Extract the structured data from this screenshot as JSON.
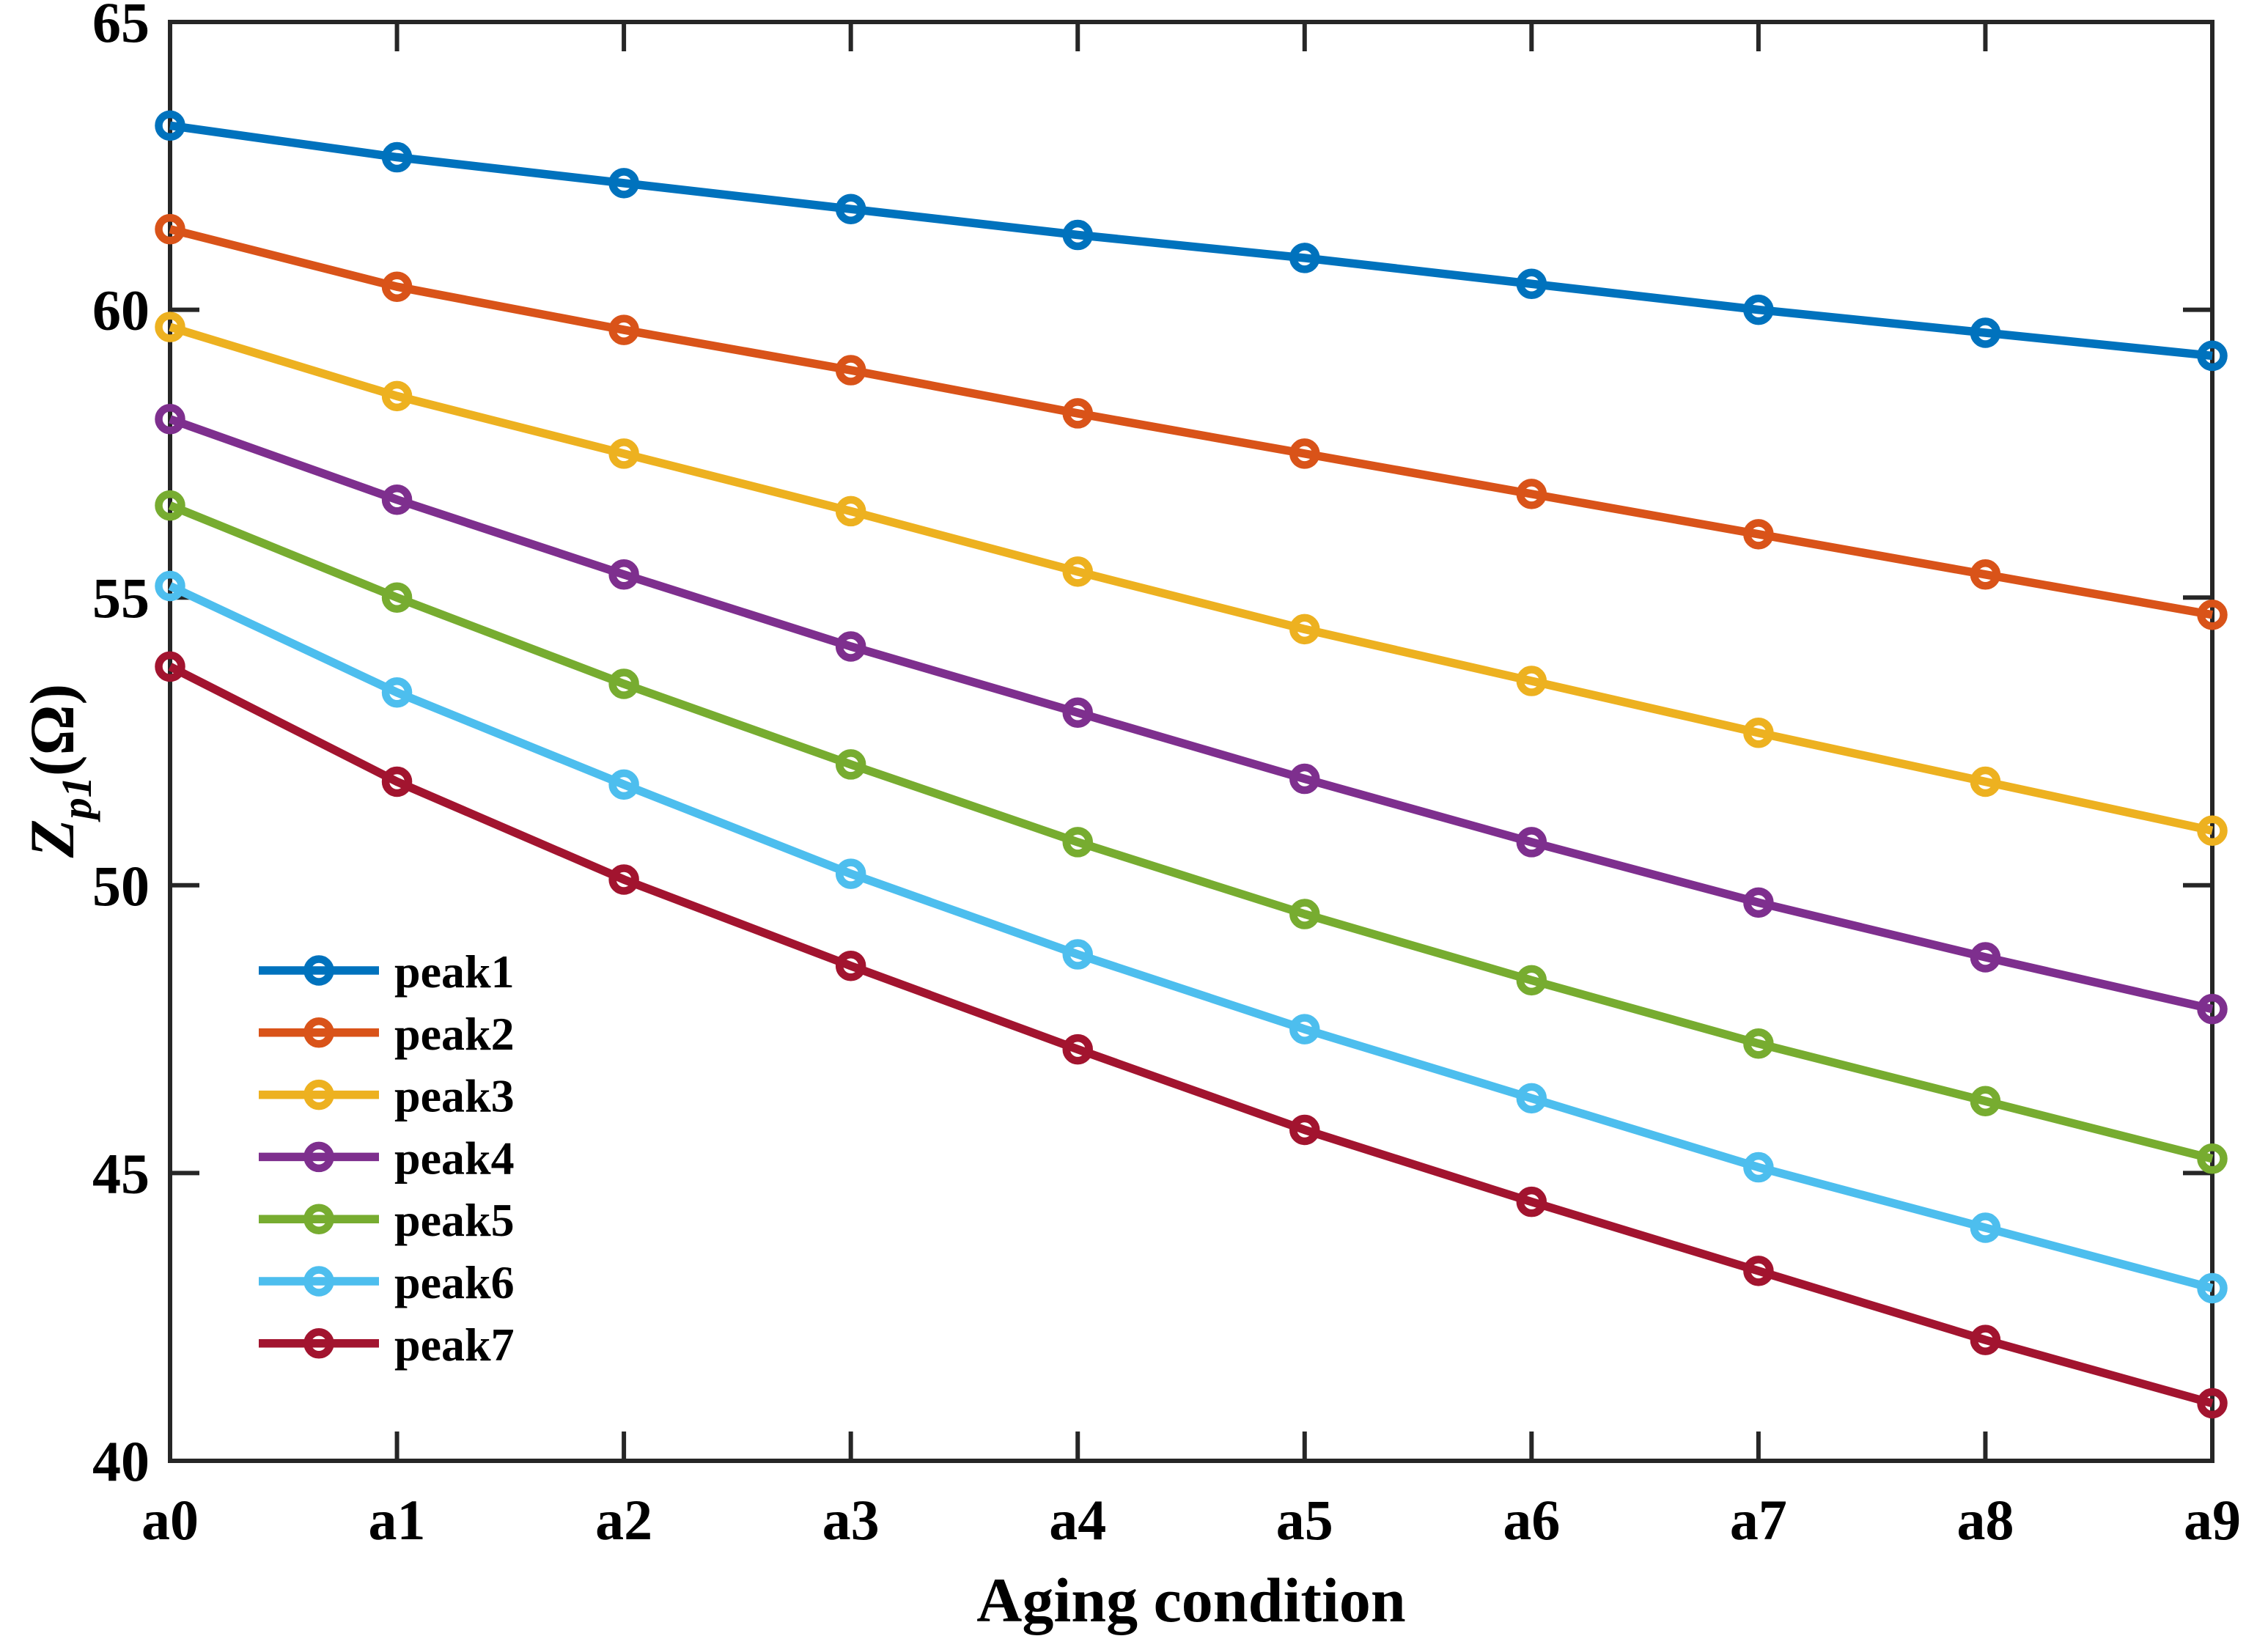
{
  "chart_data": {
    "type": "line",
    "title": "",
    "xlabel": "Aging condition",
    "ylabel": "Z_p1(Ω)",
    "ylabel_parts": {
      "main": "Z",
      "sub": "p1",
      "unit": "(Ω)"
    },
    "categories": [
      "a0",
      "a1",
      "a2",
      "a3",
      "a4",
      "a5",
      "a6",
      "a7",
      "a8",
      "a9"
    ],
    "ylim": [
      40,
      65
    ],
    "yticks": [
      40,
      45,
      50,
      55,
      60,
      65
    ],
    "grid": false,
    "legend_position": "lower-left-inside",
    "axis_color": "#262626",
    "background": "#ffffff",
    "marker": "open-circle",
    "series": [
      {
        "name": "peak1",
        "color": "#0072BD",
        "values": [
          63.2,
          62.65,
          62.2,
          61.75,
          61.3,
          60.9,
          60.45,
          60.0,
          59.6,
          59.2
        ]
      },
      {
        "name": "peak2",
        "color": "#D95319",
        "values": [
          61.4,
          60.4,
          59.65,
          58.95,
          58.2,
          57.5,
          56.8,
          56.1,
          55.4,
          54.7
        ]
      },
      {
        "name": "peak3",
        "color": "#EDB120",
        "values": [
          59.7,
          58.5,
          57.5,
          56.5,
          55.45,
          54.45,
          53.55,
          52.65,
          51.8,
          50.95
        ]
      },
      {
        "name": "peak4",
        "color": "#7E2F8E",
        "values": [
          58.1,
          56.7,
          55.4,
          54.15,
          53.0,
          51.85,
          50.75,
          49.7,
          48.75,
          47.85
        ]
      },
      {
        "name": "peak5",
        "color": "#77AC30",
        "values": [
          56.6,
          55.0,
          53.5,
          52.1,
          50.75,
          49.5,
          48.35,
          47.25,
          46.25,
          45.25
        ]
      },
      {
        "name": "peak6",
        "color": "#4DBEEE",
        "values": [
          55.2,
          53.35,
          51.75,
          50.2,
          48.8,
          47.5,
          46.3,
          45.1,
          44.05,
          43.0
        ]
      },
      {
        "name": "peak7",
        "color": "#A2142F",
        "values": [
          53.8,
          51.8,
          50.1,
          48.6,
          47.15,
          45.75,
          44.5,
          43.3,
          42.1,
          41.0
        ]
      }
    ],
    "legend_labels": [
      "peak1",
      "peak2",
      "peak3",
      "peak4",
      "peak5",
      "peak6",
      "peak7"
    ]
  }
}
